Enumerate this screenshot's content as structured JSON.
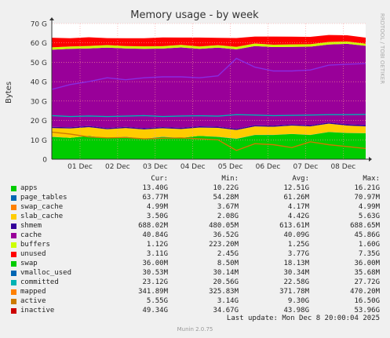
{
  "chart_data": {
    "type": "area",
    "title": "Memory usage - by week",
    "ylabel": "Bytes",
    "side_label": "RRDTOOL / TOBI OETIKER",
    "ylim": [
      0,
      70
    ],
    "y_ticks": [
      "0",
      "10 G",
      "20 G",
      "30 G",
      "40 G",
      "50 G",
      "60 G",
      "70 G"
    ],
    "x_ticks": [
      "01 Dec",
      "02 Dec",
      "03 Dec",
      "04 Dec",
      "05 Dec",
      "06 Dec",
      "07 Dec",
      "08 Dec"
    ],
    "grid": true,
    "stack_order": [
      "apps",
      "page_tables",
      "swap_cache",
      "slab_cache",
      "shmem",
      "cache",
      "buffers",
      "unused"
    ],
    "x": [
      "30 Nov 00:00",
      "30 Nov 12:00",
      "01 Dec 00:00",
      "01 Dec 12:00",
      "02 Dec 00:00",
      "02 Dec 12:00",
      "03 Dec 00:00",
      "03 Dec 12:00",
      "04 Dec 00:00",
      "04 Dec 12:00",
      "05 Dec 00:00",
      "05 Dec 12:00",
      "06 Dec 00:00",
      "06 Dec 12:00",
      "07 Dec 00:00",
      "07 Dec 12:00",
      "08 Dec 00:00",
      "08 Dec 12:00"
    ],
    "series": [
      {
        "name": "apps",
        "color": "#00cc00",
        "values": [
          11.5,
          11.0,
          12.0,
          10.8,
          11.5,
          10.5,
          11.5,
          11.0,
          12.0,
          11.5,
          10.5,
          12.5,
          12.5,
          13.0,
          12.5,
          14.0,
          13.5,
          13.4
        ]
      },
      {
        "name": "page_tables",
        "color": "#0066b3",
        "values": [
          0.06,
          0.06,
          0.06,
          0.06,
          0.06,
          0.06,
          0.06,
          0.06,
          0.06,
          0.06,
          0.06,
          0.06,
          0.06,
          0.06,
          0.06,
          0.06,
          0.06,
          0.06
        ]
      },
      {
        "name": "swap_cache",
        "color": "#ff8000",
        "values": [
          0.005,
          0.005,
          0.005,
          0.005,
          0.005,
          0.005,
          0.005,
          0.005,
          0.005,
          0.005,
          0.005,
          0.005,
          0.005,
          0.005,
          0.005,
          0.005,
          0.005,
          0.005
        ]
      },
      {
        "name": "slab_cache",
        "color": "#ffcc00",
        "values": [
          4.5,
          4.8,
          4.5,
          4.6,
          4.5,
          4.8,
          4.4,
          4.5,
          4.3,
          4.6,
          4.5,
          4.4,
          4.2,
          4.3,
          4.4,
          4.3,
          3.8,
          3.5
        ]
      },
      {
        "name": "shmem",
        "color": "#330099",
        "values": [
          0.62,
          0.62,
          0.61,
          0.61,
          0.61,
          0.61,
          0.61,
          0.61,
          0.61,
          0.61,
          0.61,
          0.61,
          0.61,
          0.61,
          0.61,
          0.62,
          0.66,
          0.69
        ]
      },
      {
        "name": "cache",
        "color": "#990099",
        "values": [
          39.8,
          40.5,
          40.0,
          41.5,
          40.5,
          41.0,
          40.5,
          41.5,
          40.0,
          40.8,
          41.0,
          40.8,
          40.5,
          40.0,
          40.5,
          40.2,
          41.5,
          40.84
        ]
      },
      {
        "name": "buffers",
        "color": "#ccff00",
        "values": [
          1.2,
          1.2,
          1.25,
          1.3,
          1.2,
          1.25,
          1.25,
          1.3,
          1.2,
          1.25,
          1.25,
          1.3,
          1.2,
          1.25,
          1.25,
          1.3,
          1.2,
          1.12
        ]
      },
      {
        "name": "unused",
        "color": "#ff0000",
        "values": [
          5.0,
          4.2,
          4.5,
          3.6,
          4.0,
          4.2,
          4.5,
          3.8,
          4.6,
          3.8,
          4.6,
          3.6,
          4.2,
          4.0,
          3.8,
          3.6,
          3.2,
          3.11
        ]
      }
    ],
    "lines": [
      {
        "name": "inactive",
        "color": "#8a2be2",
        "values": [
          36.0,
          38.5,
          40.0,
          42.0,
          41.0,
          42.0,
          42.5,
          42.5,
          42.0,
          43.0,
          52.0,
          47.5,
          45.5,
          45.5,
          46.0,
          48.5,
          49.0,
          49.34
        ]
      },
      {
        "name": "active",
        "color": "#cc7a00",
        "values": [
          14.0,
          13.0,
          11.5,
          11.0,
          11.2,
          10.5,
          10.8,
          11.0,
          10.5,
          10.0,
          4.5,
          8.0,
          7.5,
          6.0,
          9.0,
          7.5,
          6.5,
          5.55
        ]
      },
      {
        "name": "committed",
        "color": "#00b3b3",
        "values": [
          22.5,
          22.0,
          22.3,
          22.0,
          22.2,
          22.5,
          22.0,
          22.3,
          22.4,
          22.2,
          23.0,
          22.8,
          22.5,
          22.6,
          22.8,
          23.0,
          23.0,
          23.12
        ]
      }
    ],
    "legend_headers": {
      "cur": "Cur:",
      "min": "Min:",
      "avg": "Avg:",
      "max": "Max:"
    },
    "legend": [
      {
        "name": "apps",
        "color": "#00cc00",
        "cur": "13.40G",
        "min": "10.22G",
        "avg": "12.51G",
        "max": "16.21G"
      },
      {
        "name": "page_tables",
        "color": "#0066b3",
        "cur": "63.77M",
        "min": "54.28M",
        "avg": "61.26M",
        "max": "70.97M"
      },
      {
        "name": "swap_cache",
        "color": "#ff8000",
        "cur": "4.99M",
        "min": "3.67M",
        "avg": "4.17M",
        "max": "4.99M"
      },
      {
        "name": "slab_cache",
        "color": "#ffcc00",
        "cur": "3.50G",
        "min": "2.08G",
        "avg": "4.42G",
        "max": "5.63G"
      },
      {
        "name": "shmem",
        "color": "#330099",
        "cur": "688.02M",
        "min": "480.05M",
        "avg": "613.61M",
        "max": "688.65M"
      },
      {
        "name": "cache",
        "color": "#990099",
        "cur": "40.84G",
        "min": "36.52G",
        "avg": "40.09G",
        "max": "45.86G"
      },
      {
        "name": "buffers",
        "color": "#ccff00",
        "cur": "1.12G",
        "min": "223.20M",
        "avg": "1.25G",
        "max": "1.60G"
      },
      {
        "name": "unused",
        "color": "#ff0000",
        "cur": "3.11G",
        "min": "2.45G",
        "avg": "3.77G",
        "max": "7.35G"
      },
      {
        "name": "swap",
        "color": "#00cc00",
        "cur": "36.00M",
        "min": "8.50M",
        "avg": "18.13M",
        "max": "36.00M"
      },
      {
        "name": "vmalloc_used",
        "color": "#0066b3",
        "cur": "30.53M",
        "min": "30.14M",
        "avg": "30.34M",
        "max": "35.68M"
      },
      {
        "name": "committed",
        "color": "#00b3b3",
        "cur": "23.12G",
        "min": "20.56G",
        "avg": "22.58G",
        "max": "27.72G"
      },
      {
        "name": "mapped",
        "color": "#ff8000",
        "cur": "341.89M",
        "min": "325.83M",
        "avg": "371.78M",
        "max": "470.20M"
      },
      {
        "name": "active",
        "color": "#cc7a00",
        "cur": "5.55G",
        "min": "3.14G",
        "avg": "9.30G",
        "max": "16.50G"
      },
      {
        "name": "inactive",
        "color": "#cc0000",
        "cur": "49.34G",
        "min": "34.67G",
        "avg": "43.98G",
        "max": "53.96G"
      }
    ]
  },
  "footer": {
    "last_update": "Last update:  Mon Dec  8 20:00:04 2025",
    "generator": "Munin 2.0.75"
  }
}
